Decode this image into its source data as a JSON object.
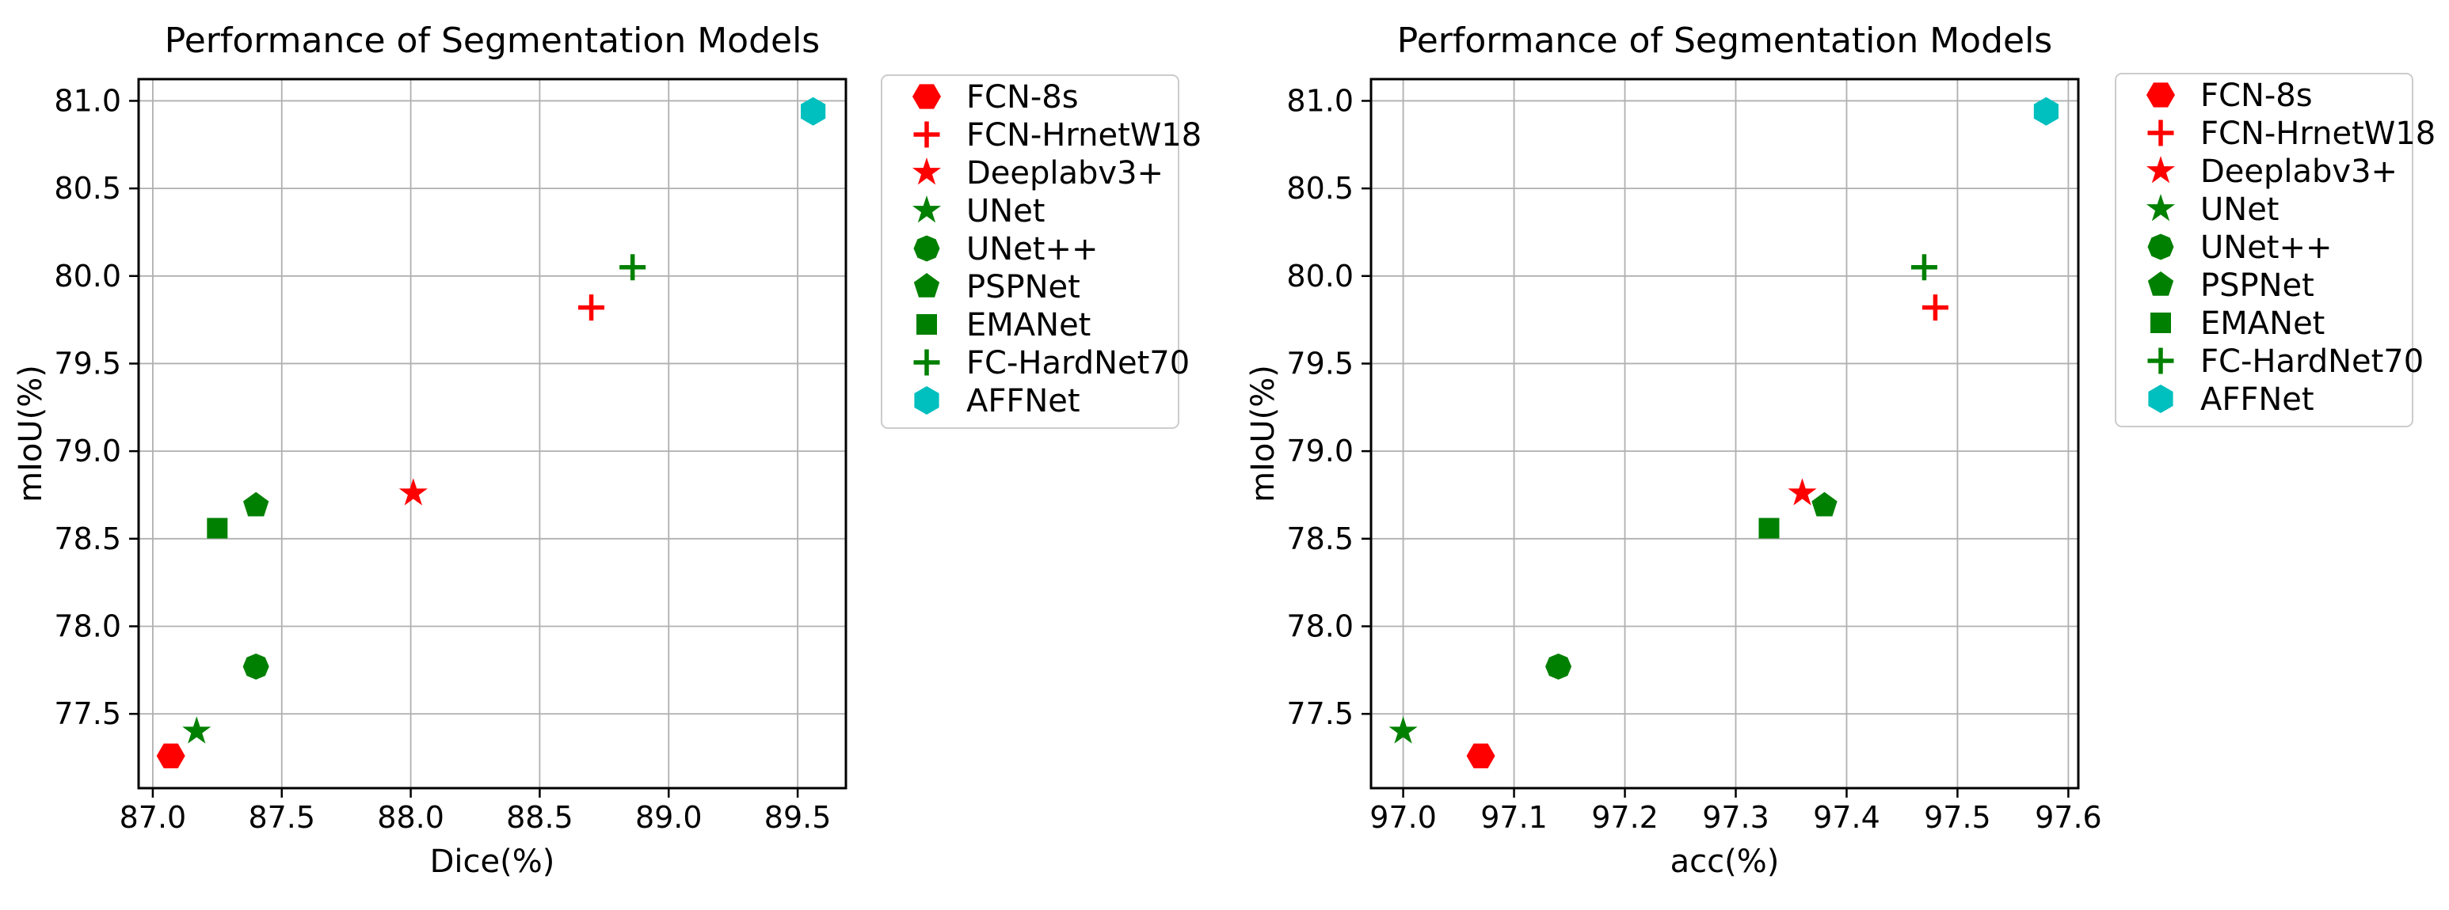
{
  "figure": {
    "background": "#ffffff",
    "grid_color": "#b0b0b0",
    "spine_color": "#000000",
    "legend_border_color": "#cccccc"
  },
  "chart_data": [
    {
      "type": "scatter",
      "title": "Performance of Segmentation Models",
      "xlabel": "Dice(%)",
      "ylabel": "mIoU(%)",
      "xlim": [
        86.945,
        89.687
      ],
      "ylim": [
        77.076,
        81.124
      ],
      "xticks": [
        "87.0",
        "87.5",
        "88.0",
        "88.5",
        "89.0",
        "89.5"
      ],
      "yticks": [
        "77.5",
        "78.0",
        "78.5",
        "79.0",
        "79.5",
        "80.0",
        "80.5",
        "81.0"
      ],
      "grid": true,
      "legend_position": "outside-right",
      "series": [
        {
          "name": "FCN-8s",
          "marker": "hexagon-flat",
          "color": "#ff0000",
          "x": 87.07,
          "y": 77.26
        },
        {
          "name": "FCN-HrnetW18",
          "marker": "plus",
          "color": "#ff0000",
          "x": 88.7,
          "y": 79.82
        },
        {
          "name": "Deeplabv3+",
          "marker": "star",
          "color": "#ff0000",
          "x": 88.01,
          "y": 78.76
        },
        {
          "name": "UNet",
          "marker": "star",
          "color": "#008000",
          "x": 87.17,
          "y": 77.4
        },
        {
          "name": "UNet++",
          "marker": "octagon",
          "color": "#008000",
          "x": 87.4,
          "y": 77.77
        },
        {
          "name": "PSPNet",
          "marker": "pentagon",
          "color": "#008000",
          "x": 87.4,
          "y": 78.69
        },
        {
          "name": "EMANet",
          "marker": "square",
          "color": "#008000",
          "x": 87.25,
          "y": 78.56
        },
        {
          "name": "FC-HardNet70",
          "marker": "plus",
          "color": "#008000",
          "x": 88.86,
          "y": 80.05
        },
        {
          "name": "AFFNet",
          "marker": "hexagon-point",
          "color": "#00bfbf",
          "x": 89.56,
          "y": 80.94
        }
      ]
    },
    {
      "type": "scatter",
      "title": "Performance of Segmentation Models",
      "xlabel": "acc(%)",
      "ylabel": "mIoU(%)",
      "xlim": [
        96.971,
        97.609
      ],
      "ylim": [
        77.076,
        81.124
      ],
      "xticks": [
        "97.0",
        "97.1",
        "97.2",
        "97.3",
        "97.4",
        "97.5",
        "97.6"
      ],
      "yticks": [
        "77.5",
        "78.0",
        "78.5",
        "79.0",
        "79.5",
        "80.0",
        "80.5",
        "81.0"
      ],
      "grid": true,
      "legend_position": "outside-right",
      "series": [
        {
          "name": "FCN-8s",
          "marker": "hexagon-flat",
          "color": "#ff0000",
          "x": 97.07,
          "y": 77.26
        },
        {
          "name": "FCN-HrnetW18",
          "marker": "plus",
          "color": "#ff0000",
          "x": 97.48,
          "y": 79.82
        },
        {
          "name": "Deeplabv3+",
          "marker": "star",
          "color": "#ff0000",
          "x": 97.36,
          "y": 78.76
        },
        {
          "name": "UNet",
          "marker": "star",
          "color": "#008000",
          "x": 97.0,
          "y": 77.4
        },
        {
          "name": "UNet++",
          "marker": "octagon",
          "color": "#008000",
          "x": 97.14,
          "y": 77.77
        },
        {
          "name": "PSPNet",
          "marker": "pentagon",
          "color": "#008000",
          "x": 97.38,
          "y": 78.69
        },
        {
          "name": "EMANet",
          "marker": "square",
          "color": "#008000",
          "x": 97.33,
          "y": 78.56
        },
        {
          "name": "FC-HardNet70",
          "marker": "plus",
          "color": "#008000",
          "x": 97.47,
          "y": 80.05
        },
        {
          "name": "AFFNet",
          "marker": "hexagon-point",
          "color": "#00bfbf",
          "x": 97.58,
          "y": 80.94
        }
      ]
    }
  ]
}
